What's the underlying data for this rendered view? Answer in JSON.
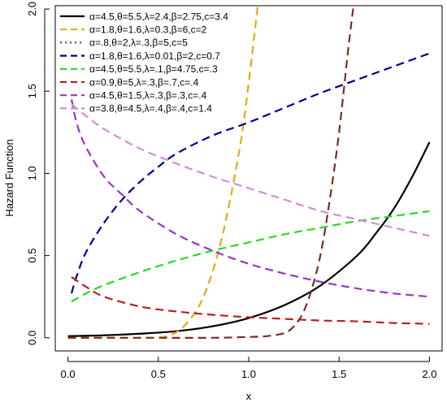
{
  "chart_data": {
    "type": "line",
    "xlabel": "x",
    "ylabel": "Hazard Function",
    "xlim": [
      -0.07,
      2.07
    ],
    "ylim": [
      -0.08,
      2.02
    ],
    "x_ticks": [
      "0.0",
      "0.5",
      "1.0",
      "1.5",
      "2.0"
    ],
    "x_tick_values": [
      0,
      0.5,
      1,
      1.5,
      2
    ],
    "y_ticks": [
      "0.0",
      "0.5",
      "1.0",
      "1.5",
      "2.0"
    ],
    "y_tick_values": [
      0,
      0.5,
      1,
      1.5,
      2
    ],
    "grid": false,
    "legend_position": "top-left",
    "series": [
      {
        "name": "α=4.5,θ=5.5,λ=2.4,β=2.75,c=3.4",
        "color": "#000000",
        "dash": "solid",
        "x": [
          0,
          0.2,
          0.4,
          0.6,
          0.8,
          1.0,
          1.2,
          1.4,
          1.6,
          1.7,
          1.8,
          1.9,
          2.0
        ],
        "y": [
          0.01,
          0.015,
          0.025,
          0.04,
          0.07,
          0.12,
          0.2,
          0.32,
          0.5,
          0.63,
          0.78,
          0.97,
          1.19
        ]
      },
      {
        "name": "α=1.8,θ=1.6,λ=0.3,β=6,c=2",
        "color": "#E6A817",
        "dash": "dashed",
        "x": [
          0,
          0.2,
          0.4,
          0.55,
          0.65,
          0.75,
          0.85,
          0.95,
          1.0,
          1.05
        ],
        "y": [
          0.0,
          0.0,
          0.0,
          0.01,
          0.08,
          0.25,
          0.6,
          1.15,
          1.55,
          2.02
        ]
      },
      {
        "name": "α=.8,θ=2,λ=.3,β=5,c=5",
        "color": "#555555",
        "dash": "dotted",
        "x": [],
        "y": []
      },
      {
        "name": "α=1.8,θ=1.6,λ=0.01,β=2,c=0.7",
        "color": "#00008B",
        "dash": "dashed",
        "x": [
          0.02,
          0.05,
          0.1,
          0.2,
          0.3,
          0.4,
          0.5,
          0.6,
          0.8,
          1.0,
          1.2,
          1.4,
          1.6,
          1.8,
          2.0
        ],
        "y": [
          0.27,
          0.38,
          0.52,
          0.7,
          0.84,
          0.95,
          1.04,
          1.12,
          1.23,
          1.31,
          1.4,
          1.49,
          1.57,
          1.65,
          1.73
        ]
      },
      {
        "name": "α=4.5,θ=5.5,λ=.1,β=4.75,c=.3",
        "color": "#22DD22",
        "dash": "dashed",
        "x": [
          0.02,
          0.1,
          0.2,
          0.4,
          0.6,
          0.8,
          1.0,
          1.2,
          1.4,
          1.6,
          1.8,
          2.0
        ],
        "y": [
          0.22,
          0.27,
          0.32,
          0.4,
          0.47,
          0.53,
          0.58,
          0.63,
          0.67,
          0.71,
          0.74,
          0.77
        ]
      },
      {
        "name": "α=0.9,θ=5,λ=.3,β=.7,c=.4",
        "color": "#B22222",
        "dash": "dashed",
        "x": [
          0.02,
          0.1,
          0.2,
          0.4,
          0.6,
          0.8,
          1.0,
          1.2,
          1.4,
          1.6,
          1.8,
          2.0
        ],
        "y": [
          0.37,
          0.31,
          0.25,
          0.19,
          0.16,
          0.14,
          0.125,
          0.115,
          0.105,
          0.1,
          0.09,
          0.085
        ]
      },
      {
        "name": "α=4.5,θ=1.5,λ=.3,β=.3,c=.4",
        "color": "#9933CC",
        "dash": "dashed",
        "x": [
          0.02,
          0.05,
          0.1,
          0.2,
          0.3,
          0.4,
          0.6,
          0.8,
          1.0,
          1.2,
          1.4,
          1.6,
          1.8,
          2.0
        ],
        "y": [
          1.45,
          1.3,
          1.16,
          0.98,
          0.87,
          0.77,
          0.63,
          0.53,
          0.45,
          0.39,
          0.34,
          0.3,
          0.27,
          0.25
        ]
      },
      {
        "name": "α=3.8,θ=4.5,λ=.4,β=.4,c=1.4",
        "color": "#DA88D8",
        "dash": "dashed",
        "x": [
          0.02,
          0.1,
          0.2,
          0.4,
          0.6,
          0.8,
          1.0,
          1.2,
          1.4,
          1.6,
          1.8,
          2.0
        ],
        "y": [
          1.42,
          1.35,
          1.27,
          1.15,
          1.06,
          0.98,
          0.91,
          0.84,
          0.77,
          0.72,
          0.67,
          0.62
        ]
      },
      {
        "name": "",
        "color": "#7B2D26",
        "dash": "dashed",
        "x": [
          0,
          0.4,
          0.8,
          1.0,
          1.1,
          1.2,
          1.25,
          1.3,
          1.35,
          1.4,
          1.45,
          1.5,
          1.55,
          1.58
        ],
        "y": [
          0.0,
          0.0,
          0.0,
          0.005,
          0.01,
          0.03,
          0.07,
          0.15,
          0.3,
          0.52,
          0.85,
          1.25,
          1.75,
          2.02
        ]
      }
    ]
  }
}
